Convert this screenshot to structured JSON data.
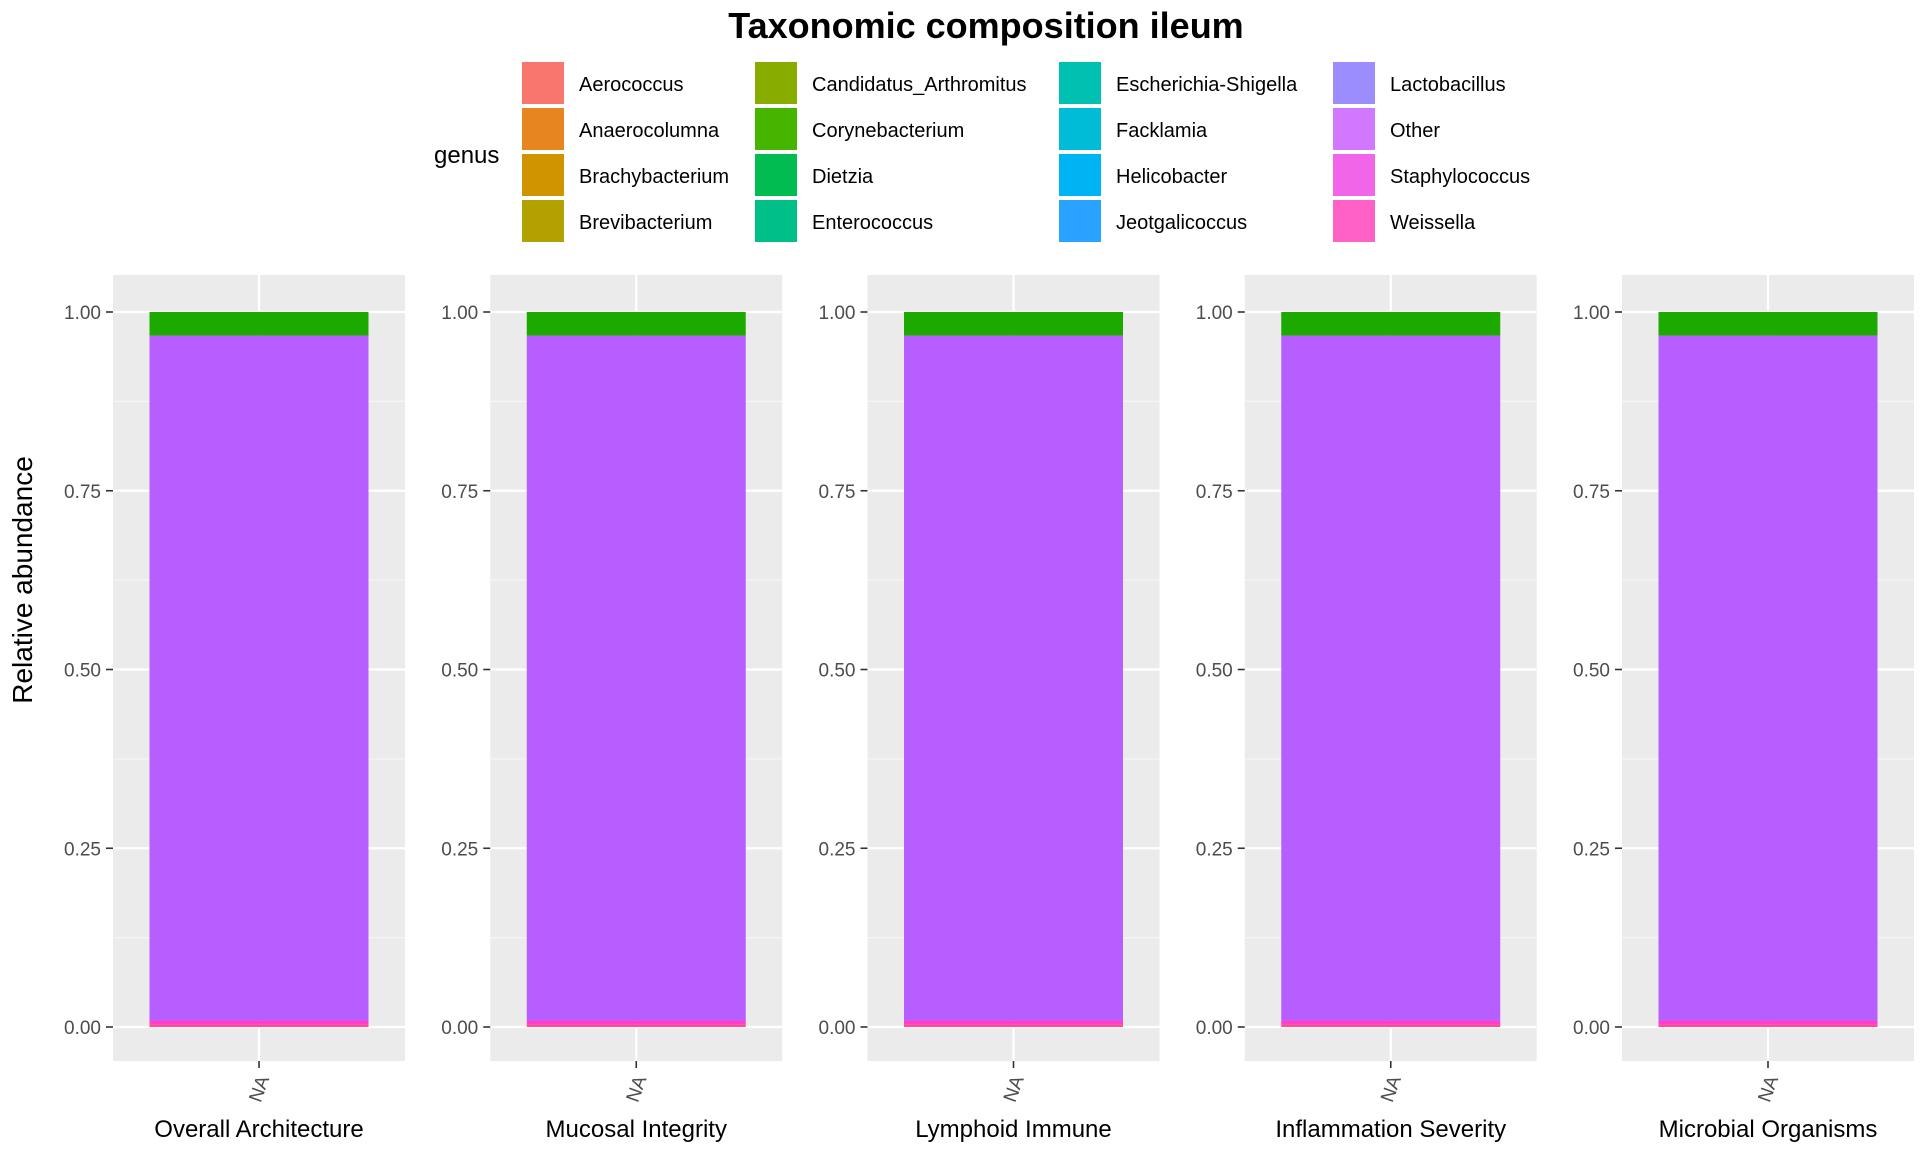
{
  "chart_data": {
    "type": "bar",
    "stacked": true,
    "title": "Taxonomic composition ileum",
    "ylabel": "Relative abundance",
    "ylim": [
      0,
      1.05
    ],
    "yticks": [
      "0.00",
      "0.25",
      "0.50",
      "0.75",
      "1.00"
    ],
    "grid": true,
    "legend": {
      "title": "genus",
      "position": "top",
      "entries": [
        {
          "name": "Aerococcus",
          "color": "#F8766D"
        },
        {
          "name": "Anaerocolumna",
          "color": "#E7851E"
        },
        {
          "name": "Brachybacterium",
          "color": "#D09400"
        },
        {
          "name": "Brevibacterium",
          "color": "#B2A100"
        },
        {
          "name": "Candidatus_Arthromitus",
          "color": "#89AC00"
        },
        {
          "name": "Corynebacterium",
          "color": "#45B500"
        },
        {
          "name": "Dietzia",
          "color": "#00BC51"
        },
        {
          "name": "Enterococcus",
          "color": "#00C087"
        },
        {
          "name": "Escherichia-Shigella",
          "color": "#00C0B2"
        },
        {
          "name": "Facklamia",
          "color": "#00BCD6"
        },
        {
          "name": "Helicobacter",
          "color": "#00B3F2"
        },
        {
          "name": "Jeotgalicoccus",
          "color": "#29A3FF"
        },
        {
          "name": "Lactobacillus",
          "color": "#9C8DFF"
        },
        {
          "name": "Other",
          "color": "#D277FF"
        },
        {
          "name": "Staphylococcus",
          "color": "#F166E8"
        },
        {
          "name": "Weissella",
          "color": "#FF61C7"
        }
      ]
    },
    "panels": [
      {
        "label": "Overall Architecture",
        "category": "NA",
        "segments": [
          {
            "genus": "Weissella",
            "value": 0.003,
            "color": "#FF4F86"
          },
          {
            "genus": "Staphylococcus",
            "value": 0.006,
            "color": "#FF3FCC"
          },
          {
            "genus": "Lactobacillus",
            "value": 0.958,
            "color": "#B65EFF"
          },
          {
            "genus": "Corynebacterium",
            "value": 0.033,
            "color": "#1DAA00"
          }
        ]
      },
      {
        "label": "Mucosal Integrity",
        "category": "NA",
        "segments": [
          {
            "genus": "Weissella",
            "value": 0.003,
            "color": "#FF4F86"
          },
          {
            "genus": "Staphylococcus",
            "value": 0.006,
            "color": "#FF3FCC"
          },
          {
            "genus": "Lactobacillus",
            "value": 0.958,
            "color": "#B65EFF"
          },
          {
            "genus": "Corynebacterium",
            "value": 0.033,
            "color": "#1DAA00"
          }
        ]
      },
      {
        "label": "Lymphoid Immune",
        "category": "NA",
        "segments": [
          {
            "genus": "Weissella",
            "value": 0.003,
            "color": "#FF4F86"
          },
          {
            "genus": "Staphylococcus",
            "value": 0.006,
            "color": "#FF3FCC"
          },
          {
            "genus": "Lactobacillus",
            "value": 0.958,
            "color": "#B65EFF"
          },
          {
            "genus": "Corynebacterium",
            "value": 0.033,
            "color": "#1DAA00"
          }
        ]
      },
      {
        "label": "Inflammation Severity",
        "category": "NA",
        "segments": [
          {
            "genus": "Weissella",
            "value": 0.003,
            "color": "#FF4F86"
          },
          {
            "genus": "Staphylococcus",
            "value": 0.006,
            "color": "#FF3FCC"
          },
          {
            "genus": "Lactobacillus",
            "value": 0.958,
            "color": "#B65EFF"
          },
          {
            "genus": "Corynebacterium",
            "value": 0.033,
            "color": "#1DAA00"
          }
        ]
      },
      {
        "label": "Microbial Organisms",
        "category": "NA",
        "segments": [
          {
            "genus": "Weissella",
            "value": 0.003,
            "color": "#FF4F86"
          },
          {
            "genus": "Staphylococcus",
            "value": 0.006,
            "color": "#FF3FCC"
          },
          {
            "genus": "Lactobacillus",
            "value": 0.958,
            "color": "#B65EFF"
          },
          {
            "genus": "Corynebacterium",
            "value": 0.033,
            "color": "#1DAA00"
          }
        ]
      }
    ]
  }
}
